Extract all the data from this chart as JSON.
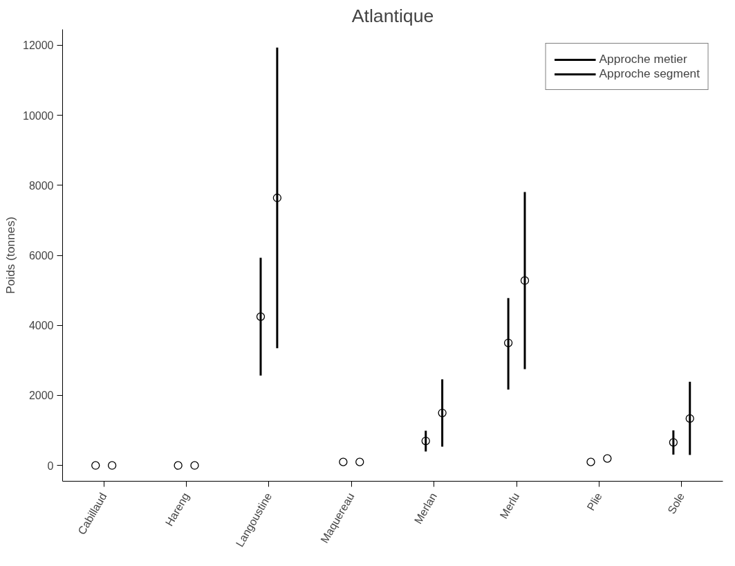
{
  "chart_data": {
    "type": "scatter",
    "title": "Atlantique",
    "ylabel": "Poids (tonnes)",
    "categories": [
      "Cabillaud",
      "Hareng",
      "Langoustine",
      "Maquereau",
      "Merlan",
      "Merlu",
      "Plie",
      "Sole"
    ],
    "series": [
      {
        "name": "Approche metier",
        "color": "#000000",
        "values": [
          0,
          0,
          4250,
          100,
          700,
          3500,
          100,
          660
        ],
        "errors": [
          null,
          null,
          [
            2570,
            5930
          ],
          null,
          [
            400,
            990
          ],
          [
            2170,
            4780
          ],
          null,
          [
            310,
            1000
          ]
        ]
      },
      {
        "name": "Approche segment",
        "color": "#000000",
        "values": [
          0,
          0,
          7640,
          100,
          1500,
          5280,
          200,
          1340
        ],
        "errors": [
          null,
          null,
          [
            3350,
            11930
          ],
          null,
          [
            540,
            2460
          ],
          [
            2750,
            7810
          ],
          null,
          [
            300,
            2390
          ]
        ]
      }
    ],
    "ylim": [
      -450,
      12450
    ],
    "yticks": [
      0,
      2000,
      4000,
      6000,
      8000,
      10000,
      12000
    ],
    "marker": "circle",
    "grid": false,
    "legend": "top right"
  }
}
